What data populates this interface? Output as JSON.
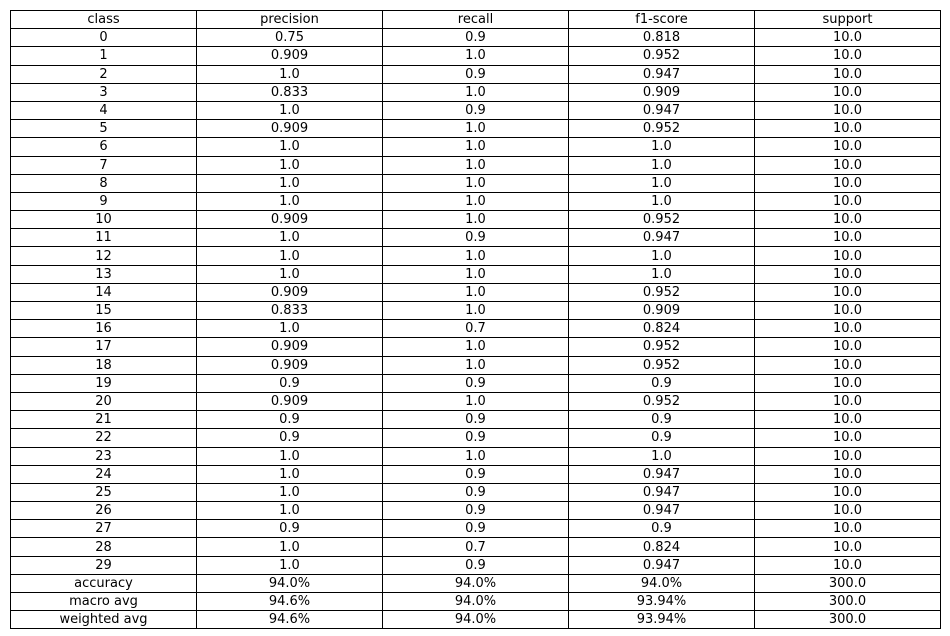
{
  "chart_data": {
    "type": "table",
    "columns": [
      "class",
      "precision",
      "recall",
      "f1-score",
      "support"
    ],
    "rows": [
      [
        "0",
        "0.75",
        "0.9",
        "0.818",
        "10.0"
      ],
      [
        "1",
        "0.909",
        "1.0",
        "0.952",
        "10.0"
      ],
      [
        "2",
        "1.0",
        "0.9",
        "0.947",
        "10.0"
      ],
      [
        "3",
        "0.833",
        "1.0",
        "0.909",
        "10.0"
      ],
      [
        "4",
        "1.0",
        "0.9",
        "0.947",
        "10.0"
      ],
      [
        "5",
        "0.909",
        "1.0",
        "0.952",
        "10.0"
      ],
      [
        "6",
        "1.0",
        "1.0",
        "1.0",
        "10.0"
      ],
      [
        "7",
        "1.0",
        "1.0",
        "1.0",
        "10.0"
      ],
      [
        "8",
        "1.0",
        "1.0",
        "1.0",
        "10.0"
      ],
      [
        "9",
        "1.0",
        "1.0",
        "1.0",
        "10.0"
      ],
      [
        "10",
        "0.909",
        "1.0",
        "0.952",
        "10.0"
      ],
      [
        "11",
        "1.0",
        "0.9",
        "0.947",
        "10.0"
      ],
      [
        "12",
        "1.0",
        "1.0",
        "1.0",
        "10.0"
      ],
      [
        "13",
        "1.0",
        "1.0",
        "1.0",
        "10.0"
      ],
      [
        "14",
        "0.909",
        "1.0",
        "0.952",
        "10.0"
      ],
      [
        "15",
        "0.833",
        "1.0",
        "0.909",
        "10.0"
      ],
      [
        "16",
        "1.0",
        "0.7",
        "0.824",
        "10.0"
      ],
      [
        "17",
        "0.909",
        "1.0",
        "0.952",
        "10.0"
      ],
      [
        "18",
        "0.909",
        "1.0",
        "0.952",
        "10.0"
      ],
      [
        "19",
        "0.9",
        "0.9",
        "0.9",
        "10.0"
      ],
      [
        "20",
        "0.909",
        "1.0",
        "0.952",
        "10.0"
      ],
      [
        "21",
        "0.9",
        "0.9",
        "0.9",
        "10.0"
      ],
      [
        "22",
        "0.9",
        "0.9",
        "0.9",
        "10.0"
      ],
      [
        "23",
        "1.0",
        "1.0",
        "1.0",
        "10.0"
      ],
      [
        "24",
        "1.0",
        "0.9",
        "0.947",
        "10.0"
      ],
      [
        "25",
        "1.0",
        "0.9",
        "0.947",
        "10.0"
      ],
      [
        "26",
        "1.0",
        "0.9",
        "0.947",
        "10.0"
      ],
      [
        "27",
        "0.9",
        "0.9",
        "0.9",
        "10.0"
      ],
      [
        "28",
        "1.0",
        "0.7",
        "0.824",
        "10.0"
      ],
      [
        "29",
        "1.0",
        "0.9",
        "0.947",
        "10.0"
      ],
      [
        "accuracy",
        "94.0%",
        "94.0%",
        "94.0%",
        "300.0"
      ],
      [
        "macro avg",
        "94.6%",
        "94.0%",
        "93.94%",
        "300.0"
      ],
      [
        "weighted avg",
        "94.6%",
        "94.0%",
        "93.94%",
        "300.0"
      ]
    ]
  },
  "colors": {
    "border": "#000000",
    "text": "#000000",
    "background": "#ffffff"
  }
}
